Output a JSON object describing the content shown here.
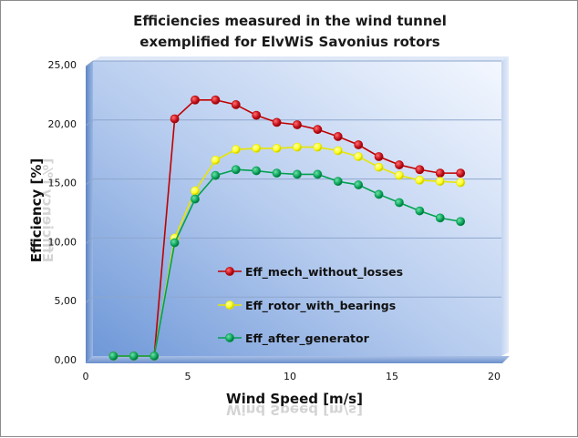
{
  "chart_data": {
    "type": "line",
    "title_line1": "Efficiencies measured in the wind tunnel",
    "title_line2": "exemplified for ElvWiS Savonius rotors",
    "xlabel": "Wind Speed [m/s]",
    "ylabel": "Efficiency  [%]",
    "xlim": [
      0,
      20
    ],
    "ylim": [
      0,
      25
    ],
    "x_ticks": [
      "0",
      "5",
      "10",
      "15",
      "20"
    ],
    "y_ticks": [
      "0,00",
      "5,00",
      "10,00",
      "15,00",
      "20,00",
      "25,00"
    ],
    "grid": "horizontal",
    "legend_position": "center-left",
    "series": [
      {
        "name": "Eff_mech_without_losses",
        "color": "#c00000",
        "fill": "#c8141e",
        "x": [
          1,
          2,
          3,
          4,
          5,
          6,
          7,
          8,
          9,
          10,
          11,
          12,
          13,
          14,
          15,
          16,
          17,
          18
        ],
        "values": [
          0,
          0,
          0,
          20.1,
          21.7,
          21.7,
          21.3,
          20.4,
          19.8,
          19.6,
          19.2,
          18.6,
          17.9,
          16.9,
          16.2,
          15.8,
          15.5,
          15.5
        ]
      },
      {
        "name": "Eff_rotor_with_bearings",
        "color": "#e6e600",
        "fill": "#ffff1a",
        "x": [
          1,
          2,
          3,
          4,
          5,
          6,
          7,
          8,
          9,
          10,
          11,
          12,
          13,
          14,
          15,
          16,
          17,
          18
        ],
        "values": [
          0,
          0,
          0,
          10.0,
          14.0,
          16.6,
          17.5,
          17.6,
          17.6,
          17.7,
          17.7,
          17.4,
          16.9,
          16.0,
          15.3,
          14.9,
          14.8,
          14.7
        ]
      },
      {
        "name": "Eff_after_generator",
        "color": "#00a050",
        "fill": "#10a860",
        "x": [
          1,
          2,
          3,
          4,
          5,
          6,
          7,
          8,
          9,
          10,
          11,
          12,
          13,
          14,
          15,
          16,
          17,
          18
        ],
        "values": [
          0,
          0,
          0,
          9.6,
          13.3,
          15.3,
          15.8,
          15.7,
          15.5,
          15.4,
          15.4,
          14.8,
          14.5,
          13.7,
          13.0,
          12.3,
          11.7,
          11.4
        ]
      }
    ]
  }
}
